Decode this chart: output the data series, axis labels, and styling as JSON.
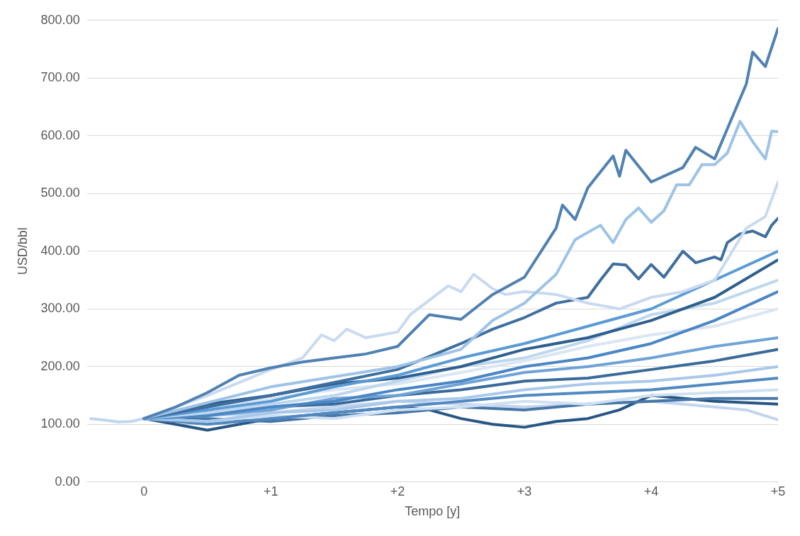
{
  "chart_data": {
    "type": "line",
    "xlabel": "Tempo [y]",
    "ylabel": "USD/bbl",
    "xlim": [
      -0.45,
      5
    ],
    "xticks": [
      {
        "value": 0,
        "label": "0"
      },
      {
        "value": 1,
        "label": "+1"
      },
      {
        "value": 2,
        "label": "+2"
      },
      {
        "value": 3,
        "label": "+3"
      },
      {
        "value": 4,
        "label": "+4"
      },
      {
        "value": 5,
        "label": "+5"
      }
    ],
    "ylim": [
      0,
      800
    ],
    "yticks": [
      {
        "value": 0,
        "label": "0.00"
      },
      {
        "value": 100,
        "label": "100.00"
      },
      {
        "value": 200,
        "label": "200.00"
      },
      {
        "value": 300,
        "label": "300.00"
      },
      {
        "value": 400,
        "label": "400.00"
      },
      {
        "value": 500,
        "label": "500.00"
      },
      {
        "value": 600,
        "label": "600.00"
      },
      {
        "value": 700,
        "label": "700.00"
      },
      {
        "value": 800,
        "label": "800.00"
      }
    ],
    "grid": "y",
    "marker": "none",
    "line_style": "solid",
    "series": [
      {
        "color": "#4f81b3",
        "x": [
          0,
          0.25,
          0.5,
          0.75,
          1,
          1.25,
          1.5,
          1.75,
          2,
          2.25,
          2.5,
          2.75,
          3,
          3.25,
          3.3,
          3.4,
          3.5,
          3.7,
          3.75,
          3.8,
          4,
          4.25,
          4.35,
          4.5,
          4.75,
          4.8,
          4.9,
          5
        ],
        "values": [
          110,
          130,
          155,
          185,
          198,
          208,
          215,
          222,
          235,
          290,
          282,
          325,
          355,
          440,
          480,
          455,
          510,
          565,
          530,
          575,
          520,
          545,
          580,
          560,
          690,
          745,
          720,
          786
        ]
      },
      {
        "color": "#9dc3e6",
        "x": [
          0,
          1,
          2,
          2.5,
          2.75,
          3,
          3.1,
          3.25,
          3.4,
          3.6,
          3.7,
          3.8,
          3.9,
          4,
          4.1,
          4.2,
          4.3,
          4.4,
          4.5,
          4.6,
          4.7,
          4.8,
          4.9,
          4.95,
          5
        ],
        "values": [
          110,
          165,
          200,
          230,
          280,
          310,
          330,
          360,
          420,
          445,
          415,
          455,
          475,
          450,
          470,
          515,
          515,
          550,
          550,
          570,
          625,
          590,
          560,
          608,
          607
        ]
      },
      {
        "color": "#c9daf0",
        "x": [
          0,
          0.5,
          1,
          1.25,
          1.4,
          1.5,
          1.6,
          1.75,
          2,
          2.1,
          2.4,
          2.5,
          2.6,
          2.75,
          2.85,
          3,
          3.25,
          3.5,
          3.75,
          4,
          4.25,
          4.5,
          4.75,
          4.9,
          5
        ],
        "values": [
          110,
          150,
          195,
          215,
          255,
          245,
          265,
          250,
          260,
          290,
          340,
          330,
          360,
          335,
          325,
          330,
          325,
          310,
          300,
          320,
          330,
          350,
          440,
          460,
          520
        ]
      },
      {
        "color": "#3f6f9f",
        "x": [
          0,
          1,
          2,
          2.5,
          2.75,
          3,
          3.25,
          3.5,
          3.6,
          3.7,
          3.8,
          3.9,
          4,
          4.1,
          4.25,
          4.35,
          4.5,
          4.55,
          4.6,
          4.7,
          4.8,
          4.9,
          4.95,
          5
        ],
        "values": [
          110,
          150,
          195,
          240,
          265,
          285,
          310,
          320,
          350,
          378,
          376,
          352,
          377,
          355,
          400,
          380,
          390,
          385,
          415,
          430,
          435,
          425,
          445,
          457
        ]
      },
      {
        "color": "#5b9bd5",
        "x": [
          0,
          0.5,
          1,
          1.5,
          2,
          2.5,
          3,
          3.5,
          4,
          4.5,
          5
        ],
        "values": [
          110,
          125,
          140,
          165,
          185,
          215,
          240,
          270,
          300,
          350,
          400
        ]
      },
      {
        "color": "#2e5f8e",
        "x": [
          0,
          0.5,
          1,
          1.5,
          2,
          2.5,
          3,
          3.5,
          4,
          4.5,
          5
        ],
        "values": [
          110,
          135,
          150,
          170,
          180,
          200,
          230,
          250,
          280,
          320,
          385
        ]
      },
      {
        "color": "#bdd7ee",
        "x": [
          0,
          0.5,
          1,
          1.5,
          2,
          2.5,
          3,
          3.5,
          4,
          4.5,
          5
        ],
        "values": [
          110,
          120,
          135,
          150,
          175,
          200,
          215,
          245,
          290,
          310,
          350
        ]
      },
      {
        "color": "#4a86c5",
        "x": [
          0,
          0.5,
          1,
          1.5,
          2,
          2.5,
          3,
          3.5,
          4,
          4.5,
          5
        ],
        "values": [
          110,
          115,
          130,
          140,
          160,
          175,
          200,
          215,
          240,
          280,
          330
        ]
      },
      {
        "color": "#dae6f4",
        "x": [
          0,
          0.5,
          1,
          1.5,
          2,
          2.5,
          3,
          3.5,
          4,
          4.5,
          5
        ],
        "values": [
          110,
          130,
          145,
          160,
          170,
          190,
          210,
          235,
          255,
          270,
          300
        ]
      },
      {
        "color": "#6fa3d8",
        "x": [
          0,
          0.5,
          1,
          1.5,
          2,
          2.5,
          3,
          3.5,
          4,
          4.5,
          5
        ],
        "values": [
          110,
          115,
          125,
          145,
          150,
          170,
          190,
          200,
          215,
          235,
          250
        ]
      },
      {
        "color": "#3a6a9a",
        "x": [
          0,
          0.5,
          1,
          1.5,
          2,
          2.5,
          3,
          3.5,
          4,
          4.5,
          5
        ],
        "values": [
          110,
          120,
          130,
          135,
          150,
          160,
          175,
          180,
          195,
          210,
          230
        ]
      },
      {
        "color": "#a9c8ea",
        "x": [
          0,
          0.5,
          1,
          1.5,
          2,
          2.5,
          3,
          3.5,
          4,
          4.5,
          5
        ],
        "values": [
          110,
          105,
          120,
          125,
          140,
          145,
          160,
          170,
          175,
          185,
          200
        ]
      },
      {
        "color": "#5189c0",
        "x": [
          0,
          0.5,
          1,
          1.5,
          2,
          2.5,
          3,
          3.5,
          4,
          4.5,
          5
        ],
        "values": [
          110,
          100,
          110,
          120,
          130,
          140,
          150,
          155,
          160,
          170,
          180
        ]
      },
      {
        "color": "#d0e0f3",
        "x": [
          0,
          0.5,
          1,
          1.5,
          2,
          2.5,
          3,
          3.5,
          4,
          4.5,
          5
        ],
        "values": [
          110,
          105,
          115,
          110,
          125,
          130,
          140,
          135,
          150,
          155,
          160
        ]
      },
      {
        "color": "#4677a8",
        "x": [
          0,
          0.5,
          1,
          1.5,
          2,
          2.5,
          3,
          3.5,
          4,
          4.5,
          5
        ],
        "values": [
          110,
          110,
          105,
          115,
          120,
          130,
          125,
          135,
          140,
          145,
          145
        ]
      },
      {
        "color": "#275684",
        "x": [
          0,
          0.5,
          1,
          1.5,
          2,
          2.25,
          2.5,
          2.75,
          3,
          3.25,
          3.5,
          3.75,
          4,
          4.5,
          5
        ],
        "values": [
          110,
          90,
          110,
          120,
          130,
          125,
          110,
          100,
          95,
          105,
          110,
          125,
          150,
          140,
          135
        ]
      },
      {
        "color": "#c2d5ee",
        "x": [
          -0.42,
          -0.3,
          -0.2,
          -0.1,
          0,
          1,
          2,
          3,
          3.5,
          4,
          4.5,
          4.75,
          5
        ],
        "values": [
          110,
          107,
          104,
          105,
          110,
          120,
          140,
          130,
          135,
          140,
          130,
          125,
          108
        ]
      }
    ]
  }
}
